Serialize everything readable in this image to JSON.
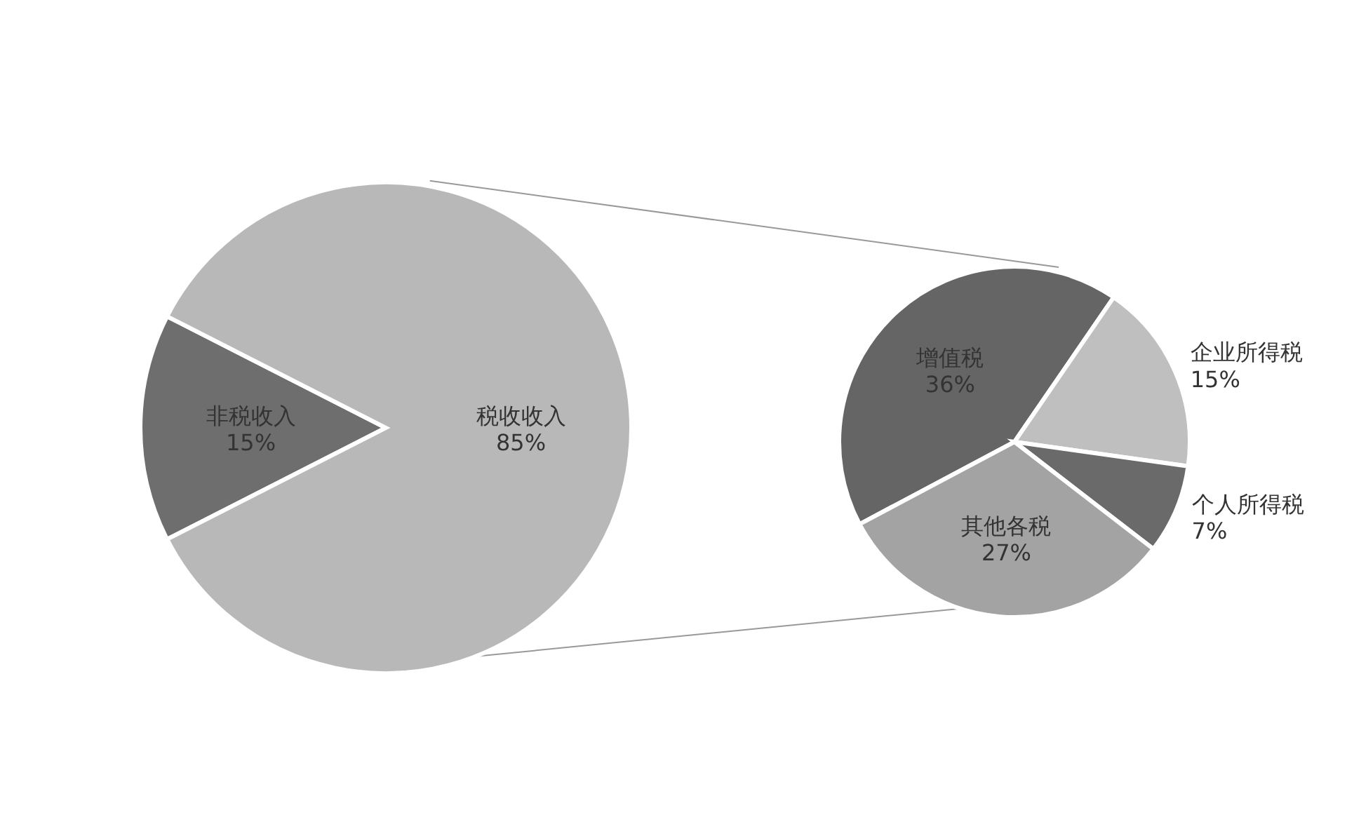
{
  "chart_data": [
    {
      "type": "pie",
      "categories": [
        "非税收入",
        "税收收入"
      ],
      "values": [
        15,
        85
      ],
      "colors": [
        "#6e6e6e",
        "#b8b8b8"
      ],
      "value_labels": [
        "15%",
        "85%"
      ]
    },
    {
      "type": "pie",
      "categories": [
        "增值税",
        "企业所得税",
        "个人所得税",
        "其他各税"
      ],
      "values": [
        36,
        15,
        7,
        27
      ],
      "colors": [
        "#656565",
        "#bfbfbf",
        "#6a6a6a",
        "#a3a3a3"
      ],
      "value_labels": [
        "36%",
        "15%",
        "7%",
        "27%"
      ]
    }
  ]
}
